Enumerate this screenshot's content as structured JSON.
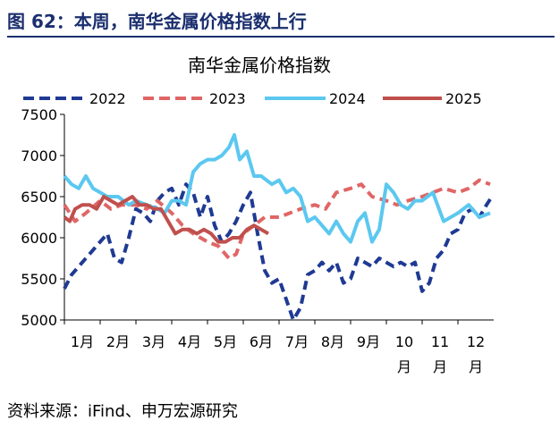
{
  "figure_title": "图 62：本周，南华金属价格指数上行",
  "source": "资料来源：iFind、申万宏源研究",
  "colors": {
    "2022": "#1f3a93",
    "2023": "#e06666",
    "2024": "#5bc8f0",
    "2025": "#c0504d",
    "title": "#1b2f6e"
  },
  "chart_data": {
    "type": "line",
    "title": "南华金属价格指数",
    "xlabel": "",
    "ylabel": "",
    "ylim": [
      5000,
      7500
    ],
    "yticks": [
      "5000",
      "5500",
      "6000",
      "6500",
      "7000",
      "7500"
    ],
    "month_labels": [
      "1月",
      "2月",
      "3月",
      "4月",
      "5月",
      "6月",
      "7月",
      "8月",
      "9月",
      "10月",
      "11月",
      "12月"
    ],
    "x_unit": "month (1 = start of Jan)",
    "legend_position": "top",
    "grid": false,
    "series": [
      {
        "name": "2022",
        "style": "dashed",
        "x": [
          1.0,
          1.2,
          1.4,
          1.6,
          1.8,
          2.0,
          2.2,
          2.4,
          2.6,
          2.8,
          3.0,
          3.2,
          3.4,
          3.6,
          3.8,
          4.0,
          4.2,
          4.4,
          4.6,
          4.8,
          5.0,
          5.2,
          5.4,
          5.6,
          5.8,
          6.0,
          6.2,
          6.4,
          6.6,
          6.8,
          7.0,
          7.2,
          7.4,
          7.6,
          7.8,
          8.0,
          8.2,
          8.4,
          8.6,
          8.8,
          9.0,
          9.2,
          9.4,
          9.6,
          9.8,
          10.0,
          10.2,
          10.4,
          10.6,
          10.8,
          11.0,
          11.2,
          11.4,
          11.6,
          11.8,
          12.0,
          12.2,
          12.4,
          12.6,
          12.8,
          12.95
        ],
        "values": [
          5380,
          5550,
          5650,
          5750,
          5850,
          5950,
          6050,
          5750,
          5700,
          6000,
          6350,
          6300,
          6200,
          6450,
          6550,
          6600,
          6400,
          6650,
          6550,
          6250,
          6500,
          6150,
          5950,
          6050,
          6200,
          6400,
          6550,
          6050,
          5600,
          5450,
          5500,
          5250,
          5000,
          5150,
          5550,
          5600,
          5700,
          5600,
          5700,
          5450,
          5500,
          5750,
          5700,
          5650,
          5750,
          5700,
          5650,
          5700,
          5650,
          5700,
          5350,
          5450,
          5750,
          5850,
          6050,
          6100,
          6300,
          6350,
          6250,
          6400,
          6500
        ]
      },
      {
        "name": "2023",
        "style": "dashed",
        "x": [
          1.0,
          1.3,
          1.6,
          2.0,
          2.3,
          2.6,
          3.0,
          3.3,
          3.6,
          4.0,
          4.3,
          4.6,
          5.0,
          5.3,
          5.6,
          5.8,
          6.0,
          6.3,
          6.6,
          7.0,
          7.3,
          7.6,
          8.0,
          8.3,
          8.6,
          9.0,
          9.3,
          9.6,
          10.0,
          10.3,
          10.6,
          11.0,
          11.3,
          11.6,
          12.0,
          12.3,
          12.6,
          12.9
        ],
        "values": [
          6400,
          6200,
          6300,
          6450,
          6350,
          6400,
          6400,
          6350,
          6450,
          6300,
          6150,
          6050,
          5950,
          5900,
          5750,
          5800,
          6050,
          6150,
          6250,
          6250,
          6300,
          6350,
          6400,
          6350,
          6550,
          6600,
          6650,
          6500,
          6450,
          6400,
          6450,
          6500,
          6550,
          6600,
          6550,
          6600,
          6700,
          6650
        ]
      },
      {
        "name": "2024",
        "style": "solid",
        "x": [
          1.0,
          1.2,
          1.4,
          1.6,
          1.8,
          2.0,
          2.2,
          2.5,
          2.8,
          3.0,
          3.3,
          3.6,
          3.8,
          4.0,
          4.2,
          4.4,
          4.6,
          4.8,
          5.0,
          5.2,
          5.4,
          5.6,
          5.75,
          5.9,
          6.1,
          6.3,
          6.5,
          6.8,
          7.0,
          7.2,
          7.4,
          7.6,
          7.8,
          8.0,
          8.2,
          8.4,
          8.6,
          8.8,
          9.0,
          9.2,
          9.4,
          9.6,
          9.8,
          10.0,
          10.2,
          10.4,
          10.6,
          10.8,
          11.0,
          11.3,
          11.6,
          12.0,
          12.3,
          12.6,
          12.9
        ],
        "values": [
          6750,
          6650,
          6600,
          6750,
          6600,
          6550,
          6500,
          6500,
          6400,
          6450,
          6400,
          6350,
          6300,
          6450,
          6450,
          6400,
          6800,
          6900,
          6950,
          6950,
          7000,
          7100,
          7250,
          6950,
          7050,
          6750,
          6750,
          6650,
          6700,
          6550,
          6600,
          6500,
          6200,
          6250,
          6150,
          6050,
          6200,
          6050,
          5950,
          6200,
          6300,
          5950,
          6100,
          6650,
          6550,
          6400,
          6350,
          6450,
          6450,
          6550,
          6200,
          6300,
          6400,
          6250,
          6300
        ]
      },
      {
        "name": "2025",
        "style": "solid",
        "x": [
          1.0,
          1.15,
          1.3,
          1.5,
          1.7,
          1.9,
          2.1,
          2.3,
          2.5,
          2.7,
          2.9,
          3.1,
          3.3,
          3.5,
          3.7,
          3.9,
          4.1,
          4.3,
          4.5,
          4.7,
          4.9,
          5.1,
          5.3,
          5.5,
          5.7,
          5.9,
          6.1,
          6.3,
          6.5,
          6.7
        ],
        "values": [
          6250,
          6200,
          6350,
          6400,
          6400,
          6350,
          6500,
          6450,
          6400,
          6450,
          6500,
          6400,
          6400,
          6350,
          6350,
          6200,
          6050,
          6100,
          6100,
          6050,
          6100,
          6050,
          5950,
          5950,
          6000,
          6000,
          6100,
          6150,
          6100,
          6050
        ]
      }
    ]
  }
}
